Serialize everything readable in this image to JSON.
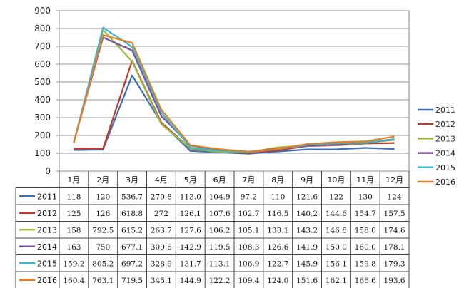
{
  "chart_data": {
    "type": "line",
    "title": "",
    "xlabel": "",
    "ylabel": "",
    "ylim": [
      0,
      900
    ],
    "yticks": [
      0,
      100,
      200,
      300,
      400,
      500,
      600,
      700,
      800,
      900
    ],
    "grid": true,
    "legend_position": "right",
    "categories": [
      "1月",
      "2月",
      "3月",
      "4月",
      "5月",
      "6月",
      "7月",
      "8月",
      "9月",
      "10月",
      "11月",
      "12月"
    ],
    "series": [
      {
        "name": "2011",
        "color": "#3E6FB8",
        "values": [
          118,
          120,
          536.7,
          270.8,
          113.0,
          104.9,
          97.2,
          110,
          121.6,
          122,
          130,
          124
        ],
        "labels": [
          "118",
          "120",
          "536.7",
          "270.8",
          "113.0",
          "104.9",
          "97.2",
          "110",
          "121.6",
          "122",
          "130",
          "124"
        ]
      },
      {
        "name": "2012",
        "color": "#C0392B",
        "values": [
          125,
          126,
          618.8,
          272,
          126.1,
          107.6,
          102.7,
          116.5,
          140.2,
          144.6,
          154.7,
          157.5
        ],
        "labels": [
          "125",
          "126",
          "618.8",
          "272",
          "126.1",
          "107.6",
          "102.7",
          "116.5",
          "140.2",
          "144.6",
          "154.7",
          "157.5"
        ]
      },
      {
        "name": "2013",
        "color": "#9BBB3B",
        "values": [
          158,
          792.5,
          615.2,
          263.7,
          127.6,
          106.2,
          105.1,
          133.1,
          143.2,
          146.8,
          158.0,
          174.6
        ],
        "labels": [
          "158",
          "792.5",
          "615.2",
          "263.7",
          "127.6",
          "106.2",
          "105.1",
          "133.1",
          "143.2",
          "146.8",
          "158.0",
          "174.6"
        ]
      },
      {
        "name": "2014",
        "color": "#7B4FA0",
        "values": [
          163,
          750,
          677.1,
          309.6,
          142.9,
          119.5,
          108.3,
          126.6,
          141.9,
          150.0,
          160.0,
          178.1
        ],
        "labels": [
          "163",
          "750",
          "677.1",
          "309.6",
          "142.9",
          "119.5",
          "108.3",
          "126.6",
          "141.9",
          "150.0",
          "160.0",
          "178.1"
        ]
      },
      {
        "name": "2015",
        "color": "#3FB3C9",
        "values": [
          159.2,
          805.2,
          697.2,
          328.9,
          131.7,
          113.1,
          106.9,
          122.7,
          145.9,
          156.1,
          159.8,
          179.3
        ],
        "labels": [
          "159.2",
          "805.2",
          "697.2",
          "328.9",
          "131.7",
          "113.1",
          "106.9",
          "122.7",
          "145.9",
          "156.1",
          "159.8",
          "179.3"
        ]
      },
      {
        "name": "2016",
        "color": "#E67E22",
        "values": [
          160.4,
          763.1,
          719.5,
          345.1,
          144.9,
          122.2,
          109.4,
          124.0,
          151.6,
          162.1,
          166.6,
          193.6
        ],
        "labels": [
          "160.4",
          "763.1",
          "719.5",
          "345.1",
          "144.9",
          "122.2",
          "109.4",
          "124.0",
          "151.6",
          "162.1",
          "166.6",
          "193.6"
        ]
      }
    ]
  }
}
